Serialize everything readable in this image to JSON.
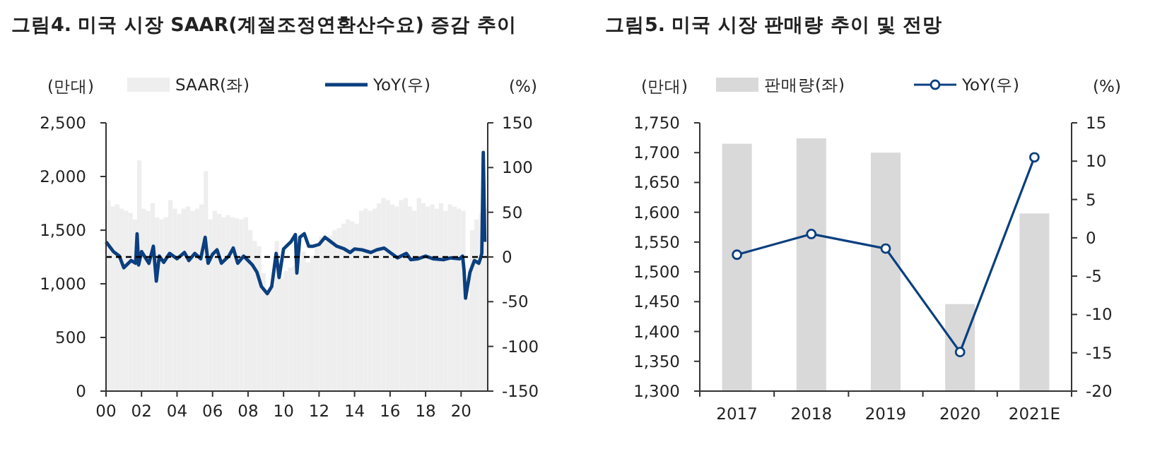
{
  "chart_data": [
    {
      "type": "bar",
      "title": "그림4. 미국 시장 SAAR(계절조정연환산수요) 증감 추이",
      "ylabel": "(만대)",
      "y2label": "(%)",
      "legend": "top",
      "grid": false,
      "xlim": [
        "2000-01",
        "2021-07"
      ],
      "xticks": [
        {
          "value": "2000-01",
          "label": "00"
        },
        {
          "value": "2002-01",
          "label": "02"
        },
        {
          "value": "2004-01",
          "label": "04"
        },
        {
          "value": "2006-01",
          "label": "06"
        },
        {
          "value": "2008-01",
          "label": "08"
        },
        {
          "value": "2010-01",
          "label": "10"
        },
        {
          "value": "2012-01",
          "label": "12"
        },
        {
          "value": "2014-01",
          "label": "14"
        },
        {
          "value": "2016-01",
          "label": "16"
        },
        {
          "value": "2018-01",
          "label": "18"
        },
        {
          "value": "2020-01",
          "label": "20"
        }
      ],
      "ylim": [
        0,
        2500
      ],
      "yticks": [
        0,
        500,
        {
          "value": 1000,
          "label": "1,000"
        },
        {
          "value": 1500,
          "label": "1,500"
        },
        {
          "value": 2000,
          "label": "2,000"
        },
        {
          "value": 2500,
          "label": "2,500"
        }
      ],
      "y2lim": [
        -150,
        150
      ],
      "y2ticks": [
        -150,
        -100,
        -50,
        0,
        50,
        100,
        150
      ],
      "ref_lines": [
        {
          "axis": "y2",
          "value": 0,
          "color": "#000000",
          "line_style": "dashed"
        }
      ],
      "series": [
        {
          "name": "SAAR(좌)",
          "color": "#eeeeee",
          "x": [
            "2000-01",
            "2000-04",
            "2000-07",
            "2000-10",
            "2001-01",
            "2001-04",
            "2001-07",
            "2001-10",
            "2002-01",
            "2002-04",
            "2002-07",
            "2002-10",
            "2003-01",
            "2003-04",
            "2003-07",
            "2003-10",
            "2004-01",
            "2004-04",
            "2004-07",
            "2004-10",
            "2005-01",
            "2005-04",
            "2005-07",
            "2005-10",
            "2006-01",
            "2006-04",
            "2006-07",
            "2006-10",
            "2007-01",
            "2007-04",
            "2007-07",
            "2007-10",
            "2008-01",
            "2008-04",
            "2008-07",
            "2008-10",
            "2009-01",
            "2009-04",
            "2009-07",
            "2009-10",
            "2010-01",
            "2010-04",
            "2010-07",
            "2010-10",
            "2011-01",
            "2011-04",
            "2011-07",
            "2011-10",
            "2012-01",
            "2012-04",
            "2012-07",
            "2012-10",
            "2013-01",
            "2013-04",
            "2013-07",
            "2013-10",
            "2014-01",
            "2014-04",
            "2014-07",
            "2014-10",
            "2015-01",
            "2015-04",
            "2015-07",
            "2015-10",
            "2016-01",
            "2016-04",
            "2016-07",
            "2016-10",
            "2017-01",
            "2017-04",
            "2017-07",
            "2017-10",
            "2018-01",
            "2018-04",
            "2018-07",
            "2018-10",
            "2019-01",
            "2019-04",
            "2019-07",
            "2019-10",
            "2020-01",
            "2020-04",
            "2020-07",
            "2020-10",
            "2021-01",
            "2021-04"
          ],
          "values": [
            1780,
            1720,
            1740,
            1700,
            1680,
            1660,
            1600,
            2150,
            1700,
            1680,
            1750,
            1620,
            1600,
            1620,
            1780,
            1700,
            1650,
            1700,
            1720,
            1680,
            1700,
            1740,
            2050,
            1600,
            1680,
            1650,
            1620,
            1640,
            1620,
            1610,
            1600,
            1620,
            1500,
            1400,
            1350,
            1100,
            950,
            980,
            1400,
            1050,
            1120,
            1150,
            1170,
            1230,
            1300,
            1200,
            1260,
            1340,
            1440,
            1400,
            1450,
            1500,
            1520,
            1560,
            1600,
            1580,
            1560,
            1680,
            1700,
            1680,
            1700,
            1750,
            1800,
            1780,
            1740,
            1720,
            1780,
            1800,
            1720,
            1680,
            1800,
            1750,
            1720,
            1740,
            1700,
            1750,
            1680,
            1740,
            1720,
            1700,
            1680,
            870,
            1500,
            1600,
            1660,
            1700
          ]
        },
        {
          "name": "YoY(우)",
          "type": "line",
          "axis": "y2",
          "color": "#0b3f7f",
          "marker": "none",
          "line_style": "solid",
          "x": [
            "2000-01",
            "2000-06",
            "2000-10",
            "2001-01",
            "2001-06",
            "2001-09",
            "2001-10",
            "2001-11",
            "2002-01",
            "2002-06",
            "2002-09",
            "2002-11",
            "2003-01",
            "2003-04",
            "2003-08",
            "2004-01",
            "2004-06",
            "2004-09",
            "2005-01",
            "2005-05",
            "2005-08",
            "2005-10",
            "2006-01",
            "2006-04",
            "2006-07",
            "2006-12",
            "2007-03",
            "2007-06",
            "2007-10",
            "2008-01",
            "2008-04",
            "2008-07",
            "2008-10",
            "2009-02",
            "2009-05",
            "2009-08",
            "2009-10",
            "2010-01",
            "2010-06",
            "2010-09",
            "2010-10",
            "2010-12",
            "2011-03",
            "2011-06",
            "2011-09",
            "2012-01",
            "2012-05",
            "2012-09",
            "2013-01",
            "2013-06",
            "2013-10",
            "2014-01",
            "2014-06",
            "2014-12",
            "2015-04",
            "2015-09",
            "2016-01",
            "2016-06",
            "2016-12",
            "2017-03",
            "2017-08",
            "2018-01",
            "2018-06",
            "2019-01",
            "2019-06",
            "2019-12",
            "2020-02",
            "2020-03",
            "2020-04",
            "2020-07",
            "2020-10",
            "2021-01",
            "2021-02",
            "2021-03",
            "2021-04",
            "2021-05"
          ],
          "values": [
            17,
            6,
            1,
            -12,
            -4,
            -7,
            26,
            -9,
            6,
            -7,
            12,
            -27,
            1,
            -6,
            4,
            -2,
            5,
            -4,
            4,
            -2,
            22,
            -7,
            3,
            8,
            -7,
            1,
            10,
            -7,
            1,
            -4,
            -9,
            -17,
            -33,
            -41,
            -33,
            4,
            -23,
            9,
            17,
            25,
            -18,
            22,
            26,
            12,
            12,
            14,
            22,
            17,
            12,
            9,
            5,
            9,
            8,
            5,
            8,
            10,
            5,
            -1,
            4,
            -3,
            -2,
            1,
            -2,
            -3,
            -1,
            -2,
            1,
            -15,
            -46,
            -17,
            -4,
            -7,
            -2,
            4,
            117,
            17
          ]
        }
      ]
    },
    {
      "type": "bar",
      "title": "그림5. 미국 시장 판매량 추이 및 전망",
      "ylabel": "(만대)",
      "y2label": "(%)",
      "legend": "top",
      "grid": false,
      "categories": [
        "2017",
        "2018",
        "2019",
        "2020",
        "2021E"
      ],
      "ylim": [
        1300,
        1750
      ],
      "yticks": [
        {
          "value": 1300,
          "label": "1,300"
        },
        {
          "value": 1350,
          "label": "1,350"
        },
        {
          "value": 1400,
          "label": "1,400"
        },
        {
          "value": 1450,
          "label": "1,450"
        },
        {
          "value": 1500,
          "label": "1,500"
        },
        {
          "value": 1550,
          "label": "1,550"
        },
        {
          "value": 1600,
          "label": "1,600"
        },
        {
          "value": 1650,
          "label": "1,650"
        },
        {
          "value": 1700,
          "label": "1,700"
        },
        {
          "value": 1750,
          "label": "1,750"
        }
      ],
      "y2lim": [
        -20,
        15
      ],
      "y2ticks": [
        -20,
        -15,
        -10,
        -5,
        0,
        5,
        10,
        15
      ],
      "series": [
        {
          "name": "판매량(좌)",
          "color": "#d9d9d9",
          "values": [
            1715,
            1724,
            1700,
            1446,
            1598
          ]
        },
        {
          "name": "YoY(우)",
          "type": "line",
          "axis": "y2",
          "color": "#0b3f7f",
          "marker": "circle",
          "line_style": "solid",
          "values": [
            -2.2,
            0.5,
            -1.4,
            -14.9,
            10.5
          ]
        }
      ]
    }
  ]
}
